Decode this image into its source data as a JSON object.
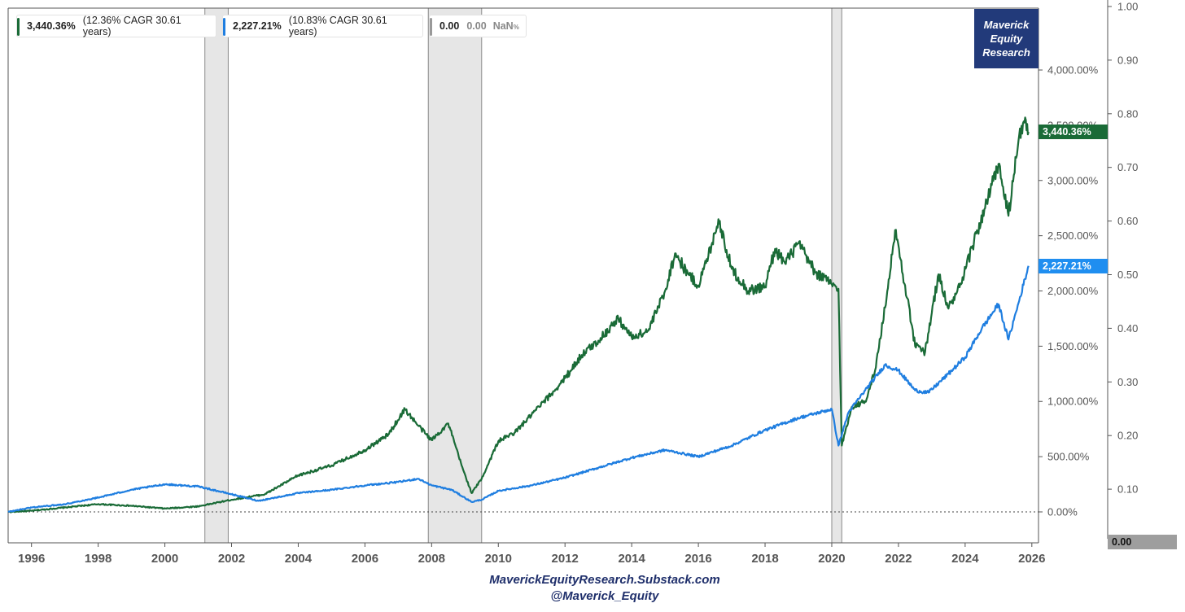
{
  "legend": [
    {
      "value": "3,440.36%",
      "detail": "(12.36% CAGR 30.61 years)",
      "color": "#1a6b37"
    },
    {
      "value": "2,227.21%",
      "detail": "(10.83% CAGR 30.61 years)",
      "color": "#1f7ee0"
    },
    {
      "value": "0.00",
      "detail": "0.00",
      "nan": "NaN",
      "nan_unit": "%",
      "color": "#999999"
    }
  ],
  "tags": {
    "green": "3,440.36%",
    "blue": "2,227.21%",
    "right_axis": "0.00"
  },
  "brand": {
    "line1": "Maverick",
    "line2": "Equity",
    "line3": "Research"
  },
  "footer": {
    "line1": "MaverickEquityResearch.Substack.com",
    "line2": "@Maverick_Equity"
  },
  "chart_data": {
    "type": "line",
    "x_range": [
      1995.3,
      2026.2
    ],
    "ylim_left": [
      -280,
      4560
    ],
    "ylim_right": [
      0.0,
      1.0
    ],
    "x_ticks": [
      "1996",
      "1998",
      "2000",
      "2002",
      "2004",
      "2006",
      "2008",
      "2010",
      "2012",
      "2014",
      "2016",
      "2018",
      "2020",
      "2022",
      "2024",
      "2026"
    ],
    "y_ticks_left": [
      "0.00%",
      "500.00%",
      "1,000.00%",
      "1,500.00%",
      "2,000.00%",
      "2,500.00%",
      "3,000.00%",
      "3,500.00%",
      "4,000.00%"
    ],
    "y_ticks_right": [
      "0.10",
      "0.20",
      "0.30",
      "0.40",
      "0.50",
      "0.60",
      "0.70",
      "0.80",
      "0.90",
      "1.00"
    ],
    "recessions": [
      [
        2001.2,
        2001.9
      ],
      [
        2007.9,
        2009.5
      ],
      [
        2020.0,
        2020.3
      ]
    ],
    "zero_line": 0,
    "series": [
      {
        "color": "#1a6b37",
        "points": [
          [
            1995.3,
            0
          ],
          [
            1996,
            10
          ],
          [
            1997,
            40
          ],
          [
            1998,
            70
          ],
          [
            1999,
            55
          ],
          [
            2000,
            30
          ],
          [
            2001,
            50
          ],
          [
            2002,
            110
          ],
          [
            2003,
            160
          ],
          [
            2004,
            330
          ],
          [
            2005,
            420
          ],
          [
            2006,
            560
          ],
          [
            2006.7,
            700
          ],
          [
            2007.2,
            930
          ],
          [
            2007.6,
            780
          ],
          [
            2008,
            650
          ],
          [
            2008.5,
            800
          ],
          [
            2008.9,
            420
          ],
          [
            2009.2,
            170
          ],
          [
            2009.5,
            300
          ],
          [
            2010,
            640
          ],
          [
            2010.5,
            720
          ],
          [
            2011,
            880
          ],
          [
            2011.6,
            1070
          ],
          [
            2012,
            1210
          ],
          [
            2012.5,
            1420
          ],
          [
            2013,
            1550
          ],
          [
            2013.6,
            1750
          ],
          [
            2014,
            1580
          ],
          [
            2014.5,
            1640
          ],
          [
            2015,
            2000
          ],
          [
            2015.3,
            2340
          ],
          [
            2015.7,
            2150
          ],
          [
            2016,
            2050
          ],
          [
            2016.3,
            2320
          ],
          [
            2016.6,
            2650
          ],
          [
            2017,
            2200
          ],
          [
            2017.5,
            2000
          ],
          [
            2018,
            2040
          ],
          [
            2018.3,
            2380
          ],
          [
            2018.6,
            2250
          ],
          [
            2019,
            2430
          ],
          [
            2019.5,
            2170
          ],
          [
            2020,
            2060
          ],
          [
            2020.2,
            2020
          ],
          [
            2020.3,
            600
          ],
          [
            2020.6,
            950
          ],
          [
            2021,
            1000
          ],
          [
            2021.3,
            1280
          ],
          [
            2021.6,
            1850
          ],
          [
            2021.9,
            2550
          ],
          [
            2022.2,
            2050
          ],
          [
            2022.5,
            1500
          ],
          [
            2022.8,
            1450
          ],
          [
            2023.2,
            2150
          ],
          [
            2023.5,
            1840
          ],
          [
            2023.9,
            2070
          ],
          [
            2024.2,
            2390
          ],
          [
            2024.6,
            2750
          ],
          [
            2025,
            3150
          ],
          [
            2025.3,
            2680
          ],
          [
            2025.6,
            3360
          ],
          [
            2025.8,
            3570
          ],
          [
            2025.9,
            3440
          ]
        ]
      },
      {
        "color": "#1f7ee0",
        "points": [
          [
            1995.3,
            0
          ],
          [
            1996,
            40
          ],
          [
            1997,
            70
          ],
          [
            1998,
            130
          ],
          [
            1999,
            200
          ],
          [
            2000,
            250
          ],
          [
            2001,
            230
          ],
          [
            2002,
            160
          ],
          [
            2002.8,
            100
          ],
          [
            2003.5,
            140
          ],
          [
            2004,
            170
          ],
          [
            2005,
            200
          ],
          [
            2006,
            240
          ],
          [
            2007,
            270
          ],
          [
            2007.6,
            300
          ],
          [
            2008,
            240
          ],
          [
            2008.6,
            200
          ],
          [
            2009.2,
            90
          ],
          [
            2009.5,
            110
          ],
          [
            2010,
            190
          ],
          [
            2011,
            240
          ],
          [
            2012,
            310
          ],
          [
            2013,
            400
          ],
          [
            2014,
            490
          ],
          [
            2015,
            560
          ],
          [
            2016,
            500
          ],
          [
            2017,
            600
          ],
          [
            2018,
            740
          ],
          [
            2019,
            850
          ],
          [
            2020,
            930
          ],
          [
            2020.2,
            600
          ],
          [
            2020.5,
            900
          ],
          [
            2021,
            1100
          ],
          [
            2021.6,
            1330
          ],
          [
            2022,
            1280
          ],
          [
            2022.5,
            1100
          ],
          [
            2022.9,
            1080
          ],
          [
            2023.5,
            1250
          ],
          [
            2024,
            1400
          ],
          [
            2024.5,
            1660
          ],
          [
            2025,
            1880
          ],
          [
            2025.3,
            1560
          ],
          [
            2025.6,
            1890
          ],
          [
            2025.9,
            2227
          ]
        ]
      }
    ]
  }
}
